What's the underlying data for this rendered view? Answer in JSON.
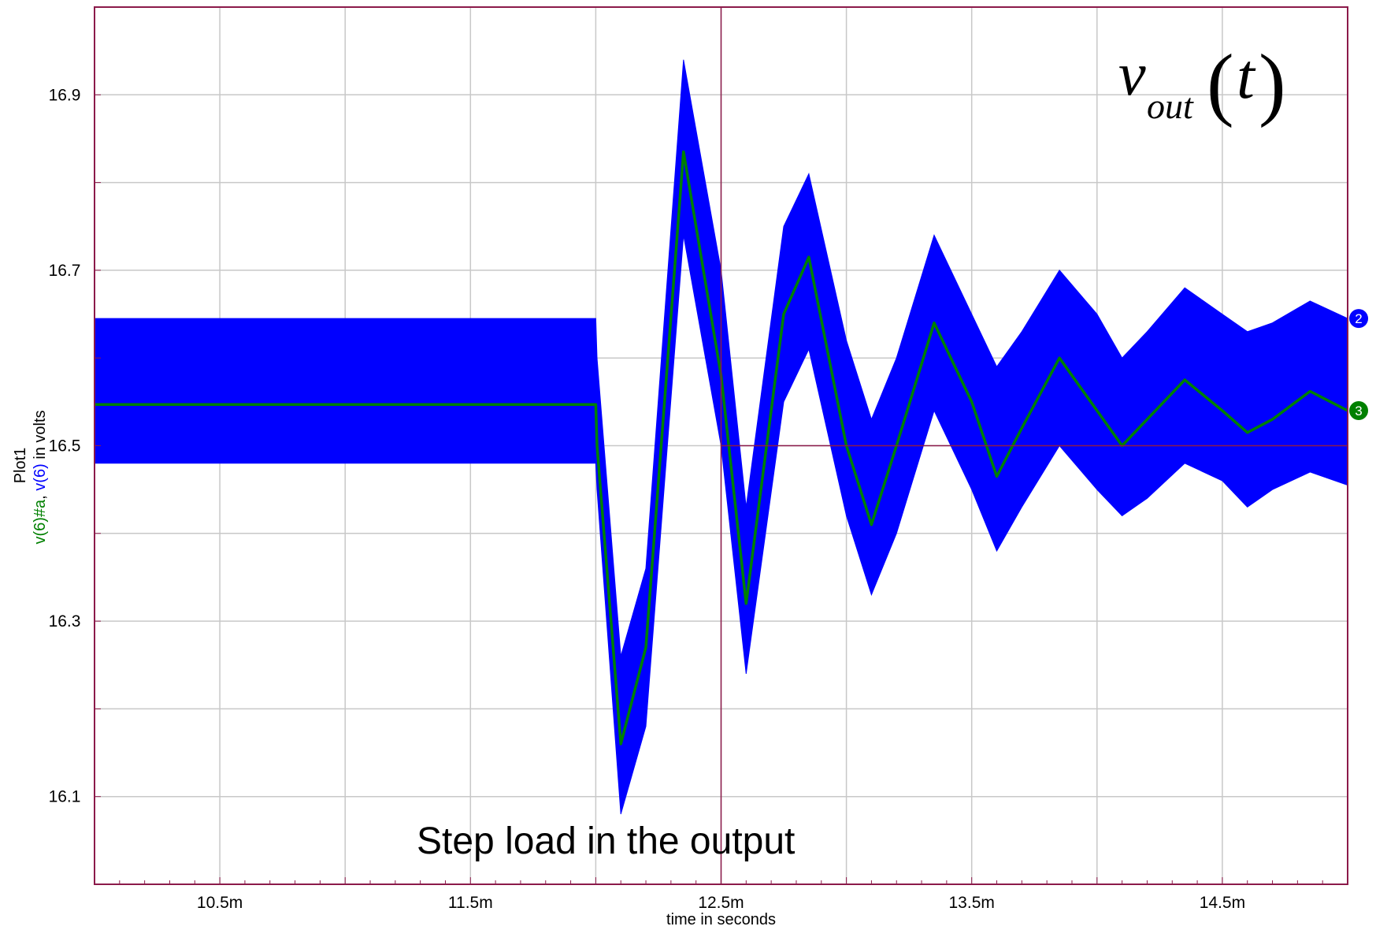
{
  "chart_data": {
    "type": "line",
    "title": "",
    "plot_name": "Plot1",
    "xlabel": "time in seconds",
    "ylabel_parts": [
      {
        "text": "v(6)#a",
        "color": "#008000"
      },
      {
        "text": ", ",
        "color": "#000000"
      },
      {
        "text": "v(6)",
        "color": "#0000ff"
      },
      {
        "text": " in volts",
        "color": "#000000"
      }
    ],
    "xlim": [
      0.01,
      0.015
    ],
    "ylim": [
      16.0,
      17.0
    ],
    "x_tick_values": [
      0.0105,
      0.0115,
      0.0125,
      0.0135,
      0.0145
    ],
    "x_tick_labels": [
      "10.5m",
      "11.5m",
      "12.5m",
      "13.5m",
      "14.5m"
    ],
    "y_tick_values": [
      16.1,
      16.3,
      16.5,
      16.7,
      16.9
    ],
    "y_tick_labels": [
      "16.1",
      "16.3",
      "16.5",
      "16.7",
      "16.9"
    ],
    "grid": true,
    "annotation": "Step load in the output",
    "formula": {
      "v": "v",
      "sub": "out",
      "arg": "t"
    },
    "cursor": {
      "x": 0.0125,
      "y": 16.5
    },
    "series": [
      {
        "name": "v(6)",
        "color": "#0000ff",
        "marker_label": "2",
        "style": "ripple envelope",
        "x": [
          0.01,
          0.012,
          0.012005,
          0.0121,
          0.0122,
          0.01235,
          0.0125,
          0.0126,
          0.01275,
          0.01285,
          0.013,
          0.0131,
          0.0132,
          0.01335,
          0.0135,
          0.0136,
          0.0137,
          0.01385,
          0.014,
          0.0141,
          0.0142,
          0.01435,
          0.0145,
          0.0146,
          0.0147,
          0.01485,
          0.015
        ],
        "upper": [
          16.645,
          16.645,
          16.6,
          16.26,
          16.36,
          16.94,
          16.7,
          16.43,
          16.75,
          16.81,
          16.62,
          16.53,
          16.6,
          16.74,
          16.65,
          16.59,
          16.63,
          16.7,
          16.65,
          16.6,
          16.63,
          16.68,
          16.65,
          16.63,
          16.64,
          16.665,
          16.645
        ],
        "lower": [
          16.48,
          16.48,
          16.45,
          16.08,
          16.18,
          16.74,
          16.5,
          16.24,
          16.55,
          16.61,
          16.42,
          16.33,
          16.4,
          16.54,
          16.45,
          16.38,
          16.43,
          16.5,
          16.45,
          16.42,
          16.44,
          16.48,
          16.46,
          16.43,
          16.45,
          16.47,
          16.455
        ]
      },
      {
        "name": "v(6)#a",
        "color": "#008000",
        "marker_label": "3",
        "style": "line",
        "x": [
          0.01,
          0.012,
          0.012005,
          0.0121,
          0.0122,
          0.01235,
          0.0125,
          0.0126,
          0.01275,
          0.01285,
          0.013,
          0.0131,
          0.0132,
          0.01335,
          0.0135,
          0.0136,
          0.0137,
          0.01385,
          0.014,
          0.0141,
          0.0142,
          0.01435,
          0.0145,
          0.0146,
          0.0147,
          0.01485,
          0.015
        ],
        "y": [
          16.547,
          16.547,
          16.5,
          16.16,
          16.27,
          16.835,
          16.58,
          16.32,
          16.65,
          16.715,
          16.5,
          16.41,
          16.5,
          16.64,
          16.55,
          16.465,
          16.52,
          16.6,
          16.54,
          16.5,
          16.53,
          16.575,
          16.54,
          16.515,
          16.53,
          16.562,
          16.54
        ]
      }
    ]
  }
}
